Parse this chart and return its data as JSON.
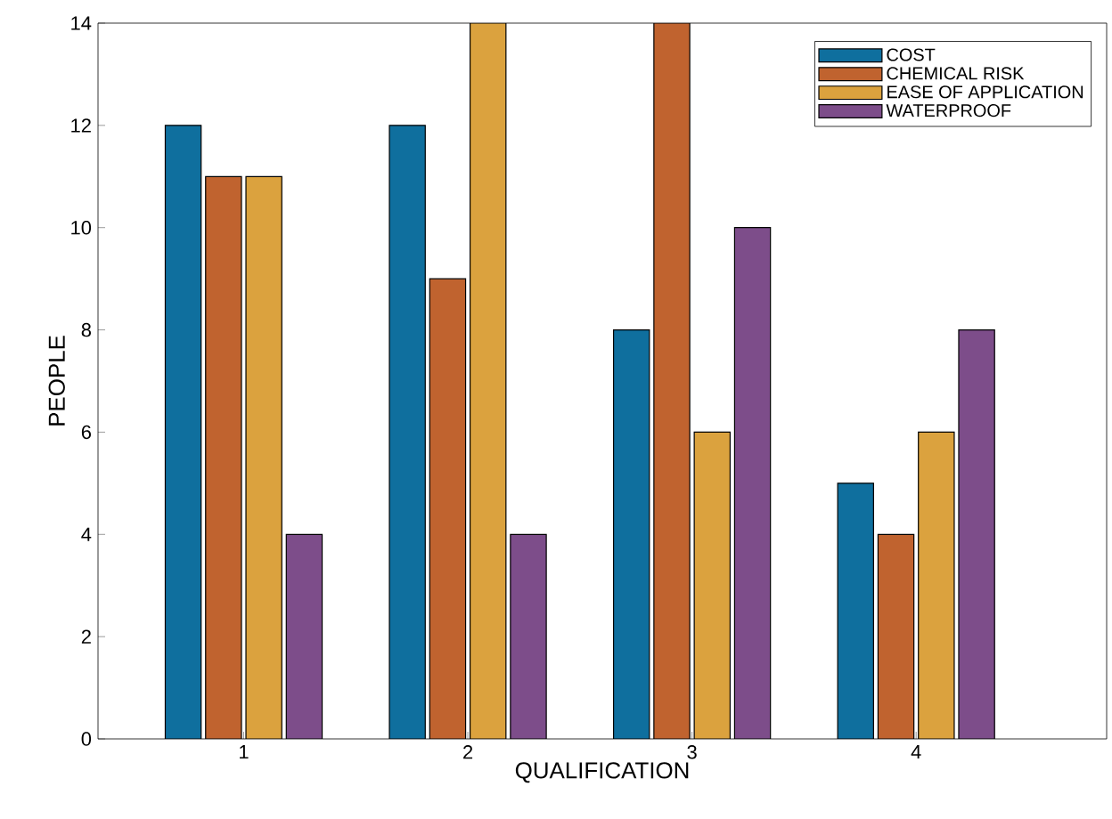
{
  "chart_data": {
    "type": "bar",
    "xlabel": "QUALIFICATION",
    "ylabel": "PEOPLE",
    "categories": [
      "1",
      "2",
      "3",
      "4"
    ],
    "series": [
      {
        "name": "COST",
        "color": "#0f6f9e",
        "values": [
          12,
          12,
          8,
          5
        ]
      },
      {
        "name": "CHEMICAL RISK",
        "color": "#c0632f",
        "values": [
          11,
          9,
          14,
          4
        ]
      },
      {
        "name": "EASE OF APPLICATION",
        "color": "#dba23e",
        "values": [
          11,
          14,
          6,
          6
        ]
      },
      {
        "name": "WATERPROOF",
        "color": "#7d4d8a",
        "values": [
          4,
          4,
          10,
          8
        ]
      }
    ],
    "ylim": [
      0,
      14
    ],
    "yticks": [
      0,
      2,
      4,
      6,
      8,
      10,
      12,
      14
    ],
    "grid": false,
    "legend": "top right"
  }
}
